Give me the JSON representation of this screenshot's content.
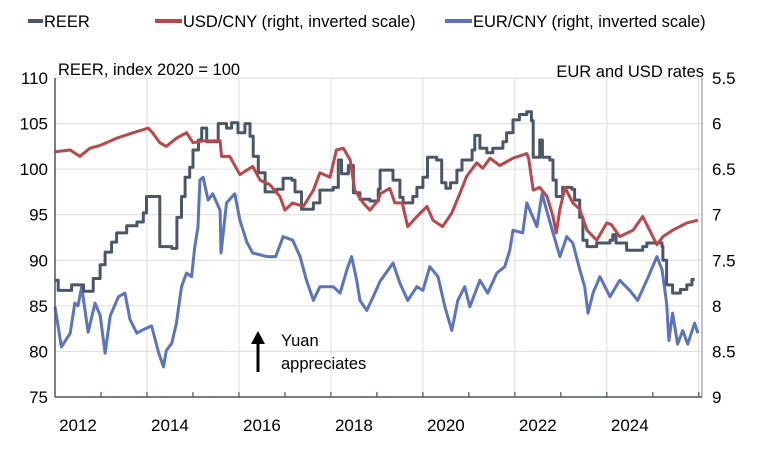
{
  "chart_data": {
    "type": "line",
    "legend": {
      "placement": "top",
      "entries": [
        "REER",
        "USD/CNY (right, inverted scale)",
        "EUR/CNY (right, inverted scale)"
      ]
    },
    "left_axis_label": "REER, index 2020 = 100",
    "right_axis_label": "EUR and USD rates",
    "annotation": {
      "line1": "Yuan",
      "line2": "appreciates"
    },
    "ylim_left": [
      75,
      110
    ],
    "ylim_right_inverted": [
      5.5,
      9
    ],
    "xlim": [
      2012,
      2026.07
    ],
    "left_ticks": [
      "75",
      "80",
      "85",
      "90",
      "95",
      "100",
      "105",
      "110"
    ],
    "right_ticks": [
      "5.5",
      "6",
      "6.5",
      "7",
      "7.5",
      "8",
      "8.5",
      "9"
    ],
    "x_ticks": [
      "2012",
      "2014",
      "2016",
      "2018",
      "2020",
      "2022",
      "2024"
    ],
    "grid": true,
    "colors": {
      "REER": "#4b5766",
      "USD": "#b9484d",
      "EUR": "#5b74bb"
    },
    "series": [
      {
        "name": "REER",
        "axis": "left",
        "step": true,
        "points": [
          [
            2012.0,
            87.8
          ],
          [
            2012.07,
            86.7
          ],
          [
            2012.36,
            87.3
          ],
          [
            2012.62,
            86.6
          ],
          [
            2012.83,
            88.0
          ],
          [
            2012.98,
            89.5
          ],
          [
            2013.09,
            90.9
          ],
          [
            2013.23,
            92.0
          ],
          [
            2013.34,
            93.0
          ],
          [
            2013.56,
            93.8
          ],
          [
            2013.78,
            94.2
          ],
          [
            2013.92,
            95.2
          ],
          [
            2013.99,
            97.0
          ],
          [
            2014.28,
            91.5
          ],
          [
            2014.54,
            91.3
          ],
          [
            2014.65,
            94.7
          ],
          [
            2014.75,
            97.0
          ],
          [
            2014.83,
            99.1
          ],
          [
            2014.93,
            100.2
          ],
          [
            2015.0,
            102.1
          ],
          [
            2015.12,
            103.2
          ],
          [
            2015.19,
            104.5
          ],
          [
            2015.3,
            103.0
          ],
          [
            2015.55,
            105.0
          ],
          [
            2015.73,
            104.5
          ],
          [
            2015.84,
            105.1
          ],
          [
            2015.98,
            104.0
          ],
          [
            2016.13,
            105.0
          ],
          [
            2016.24,
            103.6
          ],
          [
            2016.31,
            101.4
          ],
          [
            2016.42,
            99.6
          ],
          [
            2016.57,
            97.5
          ],
          [
            2016.82,
            97.8
          ],
          [
            2016.96,
            99.0
          ],
          [
            2017.15,
            98.8
          ],
          [
            2017.22,
            97.5
          ],
          [
            2017.36,
            95.6
          ],
          [
            2017.62,
            96.3
          ],
          [
            2017.76,
            97.7
          ],
          [
            2018.05,
            98.0
          ],
          [
            2018.16,
            101.0
          ],
          [
            2018.23,
            99.5
          ],
          [
            2018.38,
            100.4
          ],
          [
            2018.49,
            97.4
          ],
          [
            2018.63,
            96.7
          ],
          [
            2018.85,
            96.5
          ],
          [
            2019.03,
            97.8
          ],
          [
            2019.07,
            99.9
          ],
          [
            2019.35,
            98.8
          ],
          [
            2019.5,
            96.9
          ],
          [
            2019.57,
            96.3
          ],
          [
            2019.78,
            97.0
          ],
          [
            2019.87,
            98.0
          ],
          [
            2020.0,
            99.1
          ],
          [
            2020.1,
            101.3
          ],
          [
            2020.3,
            101.0
          ],
          [
            2020.41,
            98.5
          ],
          [
            2020.5,
            97.9
          ],
          [
            2020.6,
            98.5
          ],
          [
            2020.74,
            99.9
          ],
          [
            2020.85,
            101.0
          ],
          [
            2021.07,
            102.1
          ],
          [
            2021.13,
            103.7
          ],
          [
            2021.24,
            102.3
          ],
          [
            2021.39,
            101.8
          ],
          [
            2021.52,
            102.3
          ],
          [
            2021.74,
            103.0
          ],
          [
            2021.82,
            104.0
          ],
          [
            2021.96,
            105.4
          ],
          [
            2022.1,
            106.0
          ],
          [
            2022.26,
            106.3
          ],
          [
            2022.36,
            105.3
          ],
          [
            2022.4,
            101.3
          ],
          [
            2022.54,
            103.2
          ],
          [
            2022.6,
            101.3
          ],
          [
            2022.76,
            101.0
          ],
          [
            2022.83,
            98.8
          ],
          [
            2022.9,
            97.0
          ],
          [
            2023.04,
            98.0
          ],
          [
            2023.24,
            97.8
          ],
          [
            2023.3,
            96.6
          ],
          [
            2023.41,
            94.7
          ],
          [
            2023.48,
            92.2
          ],
          [
            2023.57,
            91.5
          ],
          [
            2023.78,
            91.9
          ],
          [
            2024.07,
            92.2
          ],
          [
            2024.13,
            92.8
          ],
          [
            2024.2,
            91.9
          ],
          [
            2024.43,
            91.1
          ],
          [
            2024.78,
            91.5
          ],
          [
            2024.87,
            91.9
          ],
          [
            2025.2,
            91.5
          ],
          [
            2025.22,
            90.0
          ],
          [
            2025.3,
            87.3
          ],
          [
            2025.43,
            86.4
          ],
          [
            2025.6,
            86.8
          ],
          [
            2025.74,
            87.3
          ],
          [
            2025.85,
            87.9
          ],
          [
            2025.91,
            87.9
          ]
        ]
      },
      {
        "name": "USD/CNY",
        "axis": "right",
        "step": false,
        "points": [
          [
            2012.0,
            6.31
          ],
          [
            2012.33,
            6.29
          ],
          [
            2012.54,
            6.36
          ],
          [
            2012.76,
            6.27
          ],
          [
            2012.98,
            6.24
          ],
          [
            2013.34,
            6.16
          ],
          [
            2013.7,
            6.1
          ],
          [
            2014.03,
            6.05
          ],
          [
            2014.12,
            6.1
          ],
          [
            2014.28,
            6.21
          ],
          [
            2014.42,
            6.25
          ],
          [
            2014.64,
            6.16
          ],
          [
            2014.86,
            6.1
          ],
          [
            2015.0,
            6.21
          ],
          [
            2015.22,
            6.19
          ],
          [
            2015.59,
            6.19
          ],
          [
            2015.62,
            6.36
          ],
          [
            2015.8,
            6.36
          ],
          [
            2016.02,
            6.56
          ],
          [
            2016.3,
            6.47
          ],
          [
            2016.46,
            6.62
          ],
          [
            2016.67,
            6.67
          ],
          [
            2016.89,
            6.8
          ],
          [
            2017.0,
            6.95
          ],
          [
            2017.17,
            6.87
          ],
          [
            2017.4,
            6.91
          ],
          [
            2017.62,
            6.73
          ],
          [
            2017.76,
            6.54
          ],
          [
            2017.98,
            6.59
          ],
          [
            2018.12,
            6.29
          ],
          [
            2018.27,
            6.27
          ],
          [
            2018.42,
            6.4
          ],
          [
            2018.52,
            6.73
          ],
          [
            2018.7,
            6.87
          ],
          [
            2018.85,
            6.95
          ],
          [
            2019.03,
            6.84
          ],
          [
            2019.07,
            6.77
          ],
          [
            2019.28,
            6.71
          ],
          [
            2019.39,
            6.87
          ],
          [
            2019.55,
            6.87
          ],
          [
            2019.67,
            7.13
          ],
          [
            2019.87,
            7.02
          ],
          [
            2020.09,
            6.91
          ],
          [
            2020.22,
            7.06
          ],
          [
            2020.43,
            7.13
          ],
          [
            2020.63,
            6.98
          ],
          [
            2020.8,
            6.77
          ],
          [
            2020.95,
            6.58
          ],
          [
            2021.17,
            6.43
          ],
          [
            2021.3,
            6.49
          ],
          [
            2021.46,
            6.38
          ],
          [
            2021.67,
            6.46
          ],
          [
            2021.96,
            6.38
          ],
          [
            2022.26,
            6.33
          ],
          [
            2022.3,
            6.38
          ],
          [
            2022.4,
            6.73
          ],
          [
            2022.54,
            6.7
          ],
          [
            2022.7,
            6.8
          ],
          [
            2022.83,
            7.02
          ],
          [
            2022.9,
            7.2
          ],
          [
            2022.98,
            6.94
          ],
          [
            2023.09,
            6.7
          ],
          [
            2023.26,
            6.87
          ],
          [
            2023.41,
            6.94
          ],
          [
            2023.57,
            7.17
          ],
          [
            2023.78,
            7.28
          ],
          [
            2024.0,
            7.09
          ],
          [
            2024.1,
            7.11
          ],
          [
            2024.28,
            7.24
          ],
          [
            2024.57,
            7.17
          ],
          [
            2024.78,
            7.02
          ],
          [
            2024.93,
            7.17
          ],
          [
            2025.09,
            7.33
          ],
          [
            2025.22,
            7.24
          ],
          [
            2025.43,
            7.17
          ],
          [
            2025.74,
            7.09
          ],
          [
            2025.98,
            7.06
          ]
        ]
      },
      {
        "name": "EUR/CNY",
        "axis": "right",
        "step": false,
        "points": [
          [
            2012.0,
            8.01
          ],
          [
            2012.07,
            8.23
          ],
          [
            2012.14,
            8.45
          ],
          [
            2012.33,
            8.3
          ],
          [
            2012.43,
            7.97
          ],
          [
            2012.5,
            8.0
          ],
          [
            2012.58,
            7.79
          ],
          [
            2012.72,
            8.29
          ],
          [
            2012.87,
            7.97
          ],
          [
            2012.98,
            8.1
          ],
          [
            2013.09,
            8.52
          ],
          [
            2013.2,
            8.11
          ],
          [
            2013.38,
            7.9
          ],
          [
            2013.52,
            7.86
          ],
          [
            2013.63,
            8.15
          ],
          [
            2013.78,
            8.3
          ],
          [
            2013.92,
            8.26
          ],
          [
            2014.1,
            8.22
          ],
          [
            2014.25,
            8.51
          ],
          [
            2014.36,
            8.67
          ],
          [
            2014.42,
            8.49
          ],
          [
            2014.54,
            8.41
          ],
          [
            2014.64,
            8.19
          ],
          [
            2014.75,
            7.79
          ],
          [
            2014.86,
            7.64
          ],
          [
            2014.97,
            7.68
          ],
          [
            2015.04,
            7.35
          ],
          [
            2015.11,
            7.13
          ],
          [
            2015.15,
            6.62
          ],
          [
            2015.22,
            6.59
          ],
          [
            2015.33,
            6.84
          ],
          [
            2015.43,
            6.77
          ],
          [
            2015.59,
            6.95
          ],
          [
            2015.61,
            7.42
          ],
          [
            2015.73,
            6.87
          ],
          [
            2015.91,
            6.77
          ],
          [
            2016.02,
            7.06
          ],
          [
            2016.17,
            7.3
          ],
          [
            2016.3,
            7.42
          ],
          [
            2016.61,
            7.46
          ],
          [
            2016.8,
            7.46
          ],
          [
            2016.96,
            7.24
          ],
          [
            2017.17,
            7.28
          ],
          [
            2017.33,
            7.46
          ],
          [
            2017.47,
            7.72
          ],
          [
            2017.62,
            7.94
          ],
          [
            2017.76,
            7.79
          ],
          [
            2018.05,
            7.79
          ],
          [
            2018.2,
            7.86
          ],
          [
            2018.35,
            7.6
          ],
          [
            2018.45,
            7.46
          ],
          [
            2018.56,
            7.72
          ],
          [
            2018.63,
            7.94
          ],
          [
            2018.78,
            8.05
          ],
          [
            2018.92,
            7.9
          ],
          [
            2019.07,
            7.73
          ],
          [
            2019.35,
            7.53
          ],
          [
            2019.5,
            7.75
          ],
          [
            2019.67,
            7.94
          ],
          [
            2019.87,
            7.79
          ],
          [
            2020.0,
            7.83
          ],
          [
            2020.15,
            7.57
          ],
          [
            2020.33,
            7.68
          ],
          [
            2020.48,
            8.01
          ],
          [
            2020.63,
            8.27
          ],
          [
            2020.76,
            7.94
          ],
          [
            2020.91,
            7.79
          ],
          [
            2021.02,
            8.01
          ],
          [
            2021.24,
            7.72
          ],
          [
            2021.41,
            7.86
          ],
          [
            2021.61,
            7.64
          ],
          [
            2021.78,
            7.57
          ],
          [
            2021.89,
            7.39
          ],
          [
            2021.96,
            7.17
          ],
          [
            2022.17,
            7.2
          ],
          [
            2022.26,
            6.87
          ],
          [
            2022.48,
            7.13
          ],
          [
            2022.59,
            6.77
          ],
          [
            2022.83,
            7.2
          ],
          [
            2022.98,
            7.46
          ],
          [
            2023.13,
            7.24
          ],
          [
            2023.26,
            7.31
          ],
          [
            2023.41,
            7.6
          ],
          [
            2023.52,
            7.79
          ],
          [
            2023.59,
            8.08
          ],
          [
            2023.7,
            7.86
          ],
          [
            2023.85,
            7.68
          ],
          [
            2024.07,
            7.9
          ],
          [
            2024.28,
            7.72
          ],
          [
            2024.5,
            7.83
          ],
          [
            2024.67,
            7.94
          ],
          [
            2024.87,
            7.72
          ],
          [
            2025.09,
            7.46
          ],
          [
            2025.2,
            7.6
          ],
          [
            2025.3,
            7.97
          ],
          [
            2025.35,
            8.38
          ],
          [
            2025.43,
            8.08
          ],
          [
            2025.54,
            8.42
          ],
          [
            2025.65,
            8.27
          ],
          [
            2025.76,
            8.42
          ],
          [
            2025.91,
            8.19
          ],
          [
            2025.98,
            8.3
          ]
        ]
      }
    ]
  }
}
